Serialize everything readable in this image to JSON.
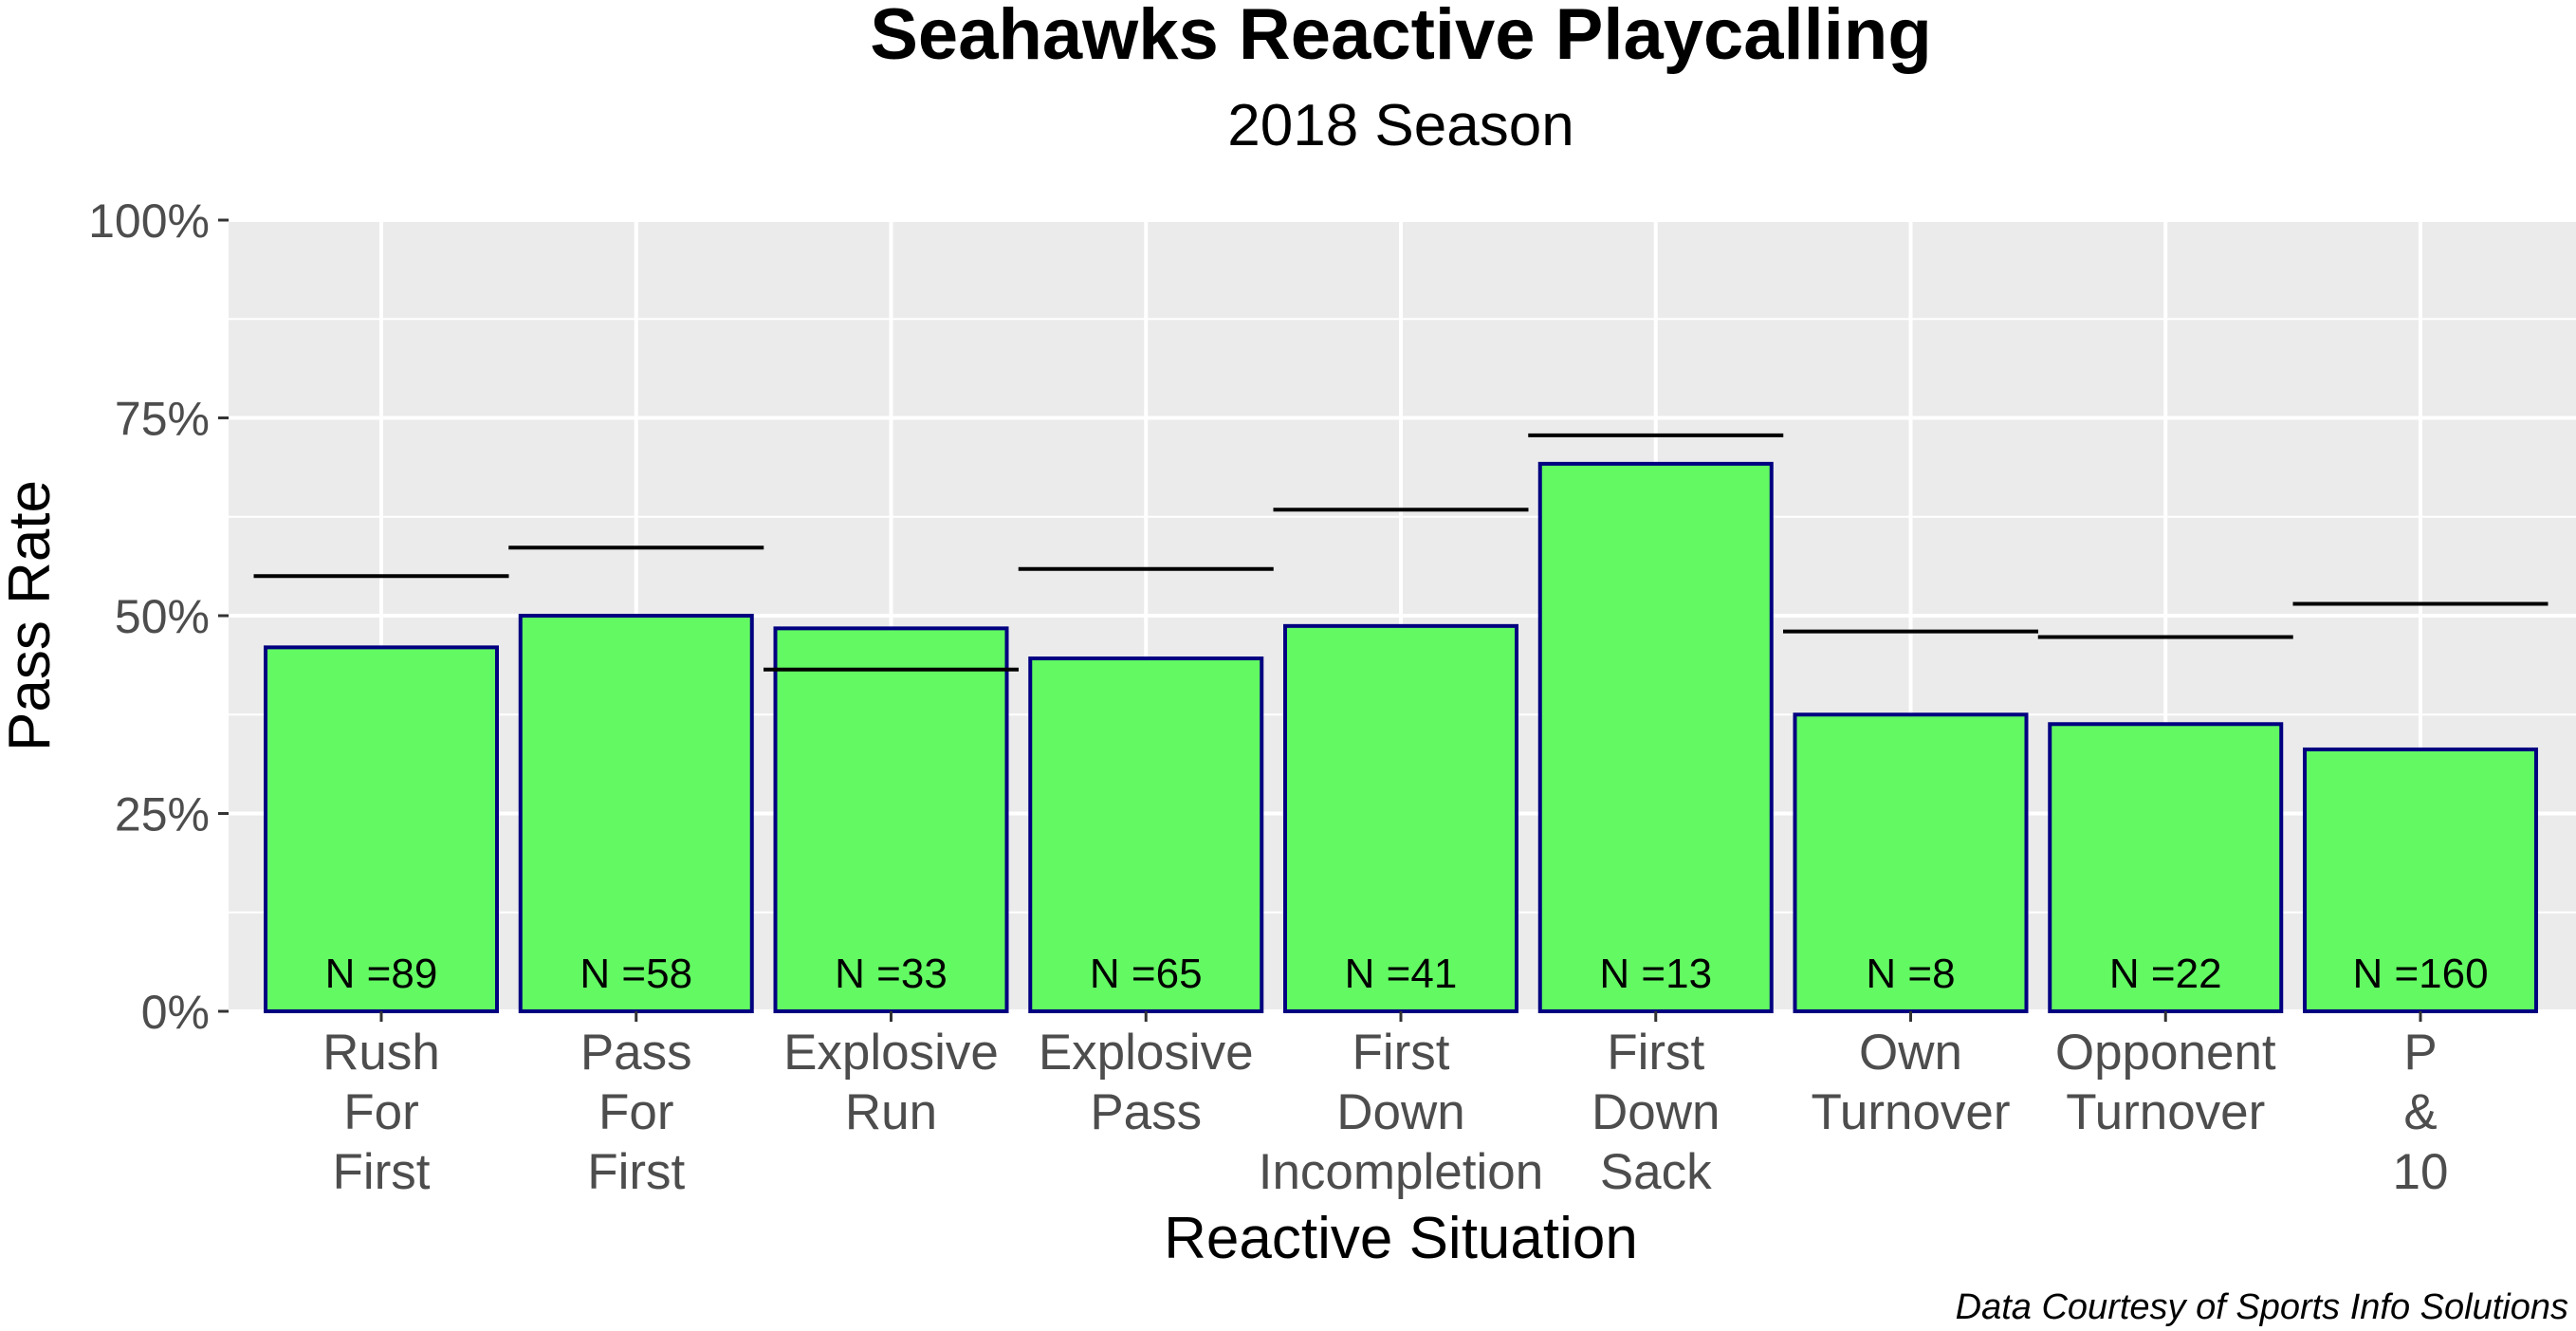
{
  "chart_data": {
    "type": "bar",
    "title": "Seahawks Reactive Playcalling",
    "subtitle": "2018 Season",
    "xlabel": "Reactive Situation",
    "ylabel": "Pass Rate",
    "caption": "Data Courtesy of Sports Info Solutions",
    "ylim": [
      0,
      100
    ],
    "yticks": [
      0,
      25,
      50,
      75,
      100
    ],
    "ytick_labels": [
      "0%",
      "25%",
      "50%",
      "75%",
      "100%"
    ],
    "grid": true,
    "categories": [
      [
        "Rush",
        "For",
        "First"
      ],
      [
        "Pass",
        "For",
        "First"
      ],
      [
        "Explosive",
        "Run"
      ],
      [
        "Explosive",
        "Pass"
      ],
      [
        "First",
        "Down",
        "Incompletion"
      ],
      [
        "First",
        "Down",
        "Sack"
      ],
      [
        "Own",
        "Turnover"
      ],
      [
        "Opponent",
        "Turnover"
      ],
      [
        "P",
        "&",
        "10"
      ]
    ],
    "series": [
      {
        "name": "Seahawks Pass Rate",
        "type": "bar",
        "values": [
          46.0,
          50.0,
          48.4,
          44.6,
          48.7,
          69.2,
          37.5,
          36.3,
          33.1
        ]
      },
      {
        "name": "Reference Pass Rate",
        "type": "segment",
        "values": [
          55.0,
          58.6,
          43.2,
          55.9,
          63.4,
          72.8,
          48.0,
          47.3,
          51.5
        ]
      }
    ],
    "bar_labels": [
      "N =89",
      "N =58",
      "N =33",
      "N =65",
      "N =41",
      "N =13",
      "N =8",
      "N =22",
      "N =160"
    ],
    "colors": {
      "bar_fill": "#62f962",
      "bar_outline": "#000080",
      "reference_line": "#000000",
      "panel_bg": "#ebebeb",
      "grid": "#ffffff",
      "tick_text": "#4d4d4d"
    }
  }
}
